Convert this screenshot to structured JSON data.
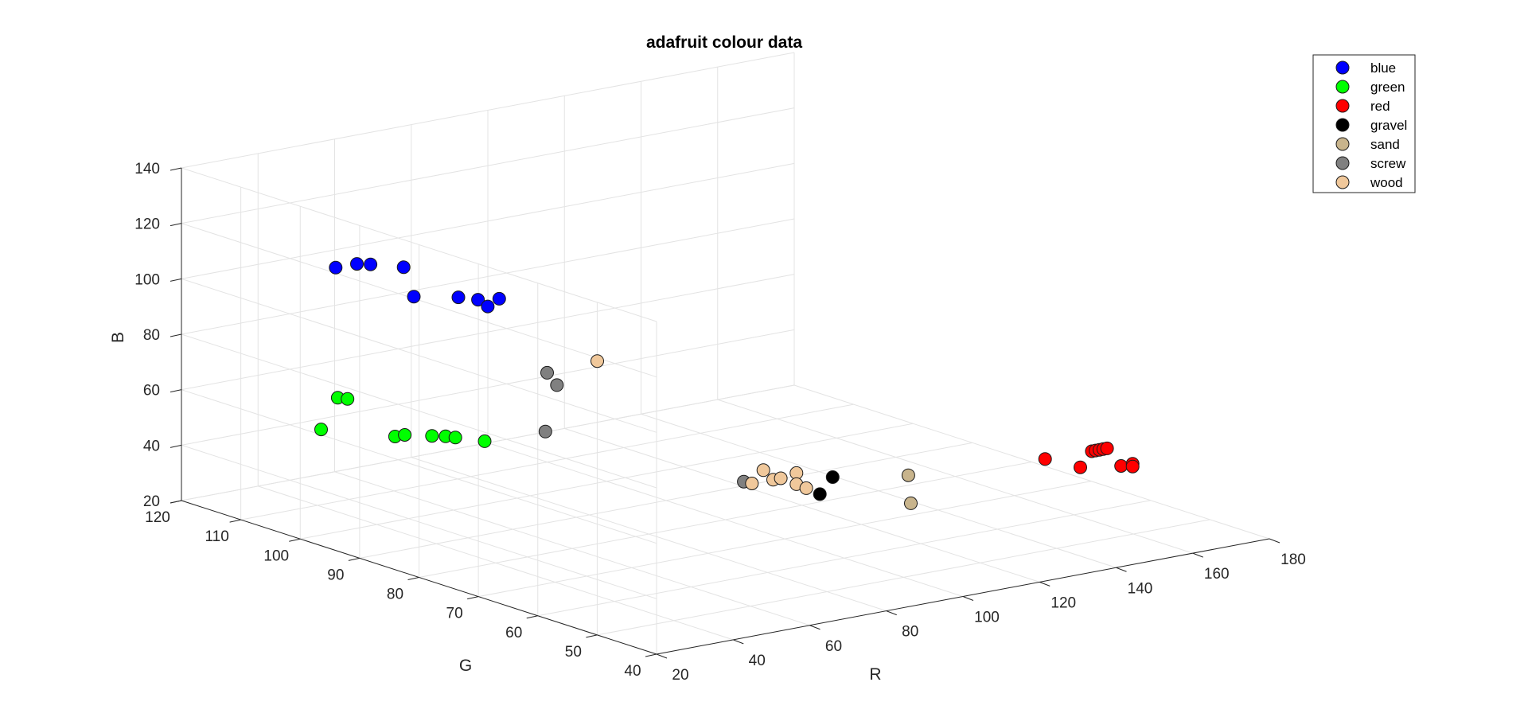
{
  "chart_data": {
    "type": "scatter",
    "subtype": "scatter3d",
    "title": "adafruit colour data",
    "xlabel": "R",
    "ylabel": "G",
    "zlabel": "B",
    "xlim": [
      20,
      180
    ],
    "ylim": [
      40,
      120
    ],
    "zlim": [
      20,
      140
    ],
    "xticks": [
      "20",
      "40",
      "60",
      "80",
      "100",
      "120",
      "140",
      "160",
      "180"
    ],
    "yticks": [
      "40",
      "50",
      "60",
      "70",
      "80",
      "90",
      "100",
      "110",
      "120"
    ],
    "zticks": [
      "20",
      "40",
      "60",
      "80",
      "100",
      "120",
      "140"
    ],
    "grid": true,
    "legend_position": "top-right",
    "series": [
      {
        "name": "blue",
        "color": "#0000ff",
        "points": [
          [
            37,
            105,
            110
          ],
          [
            41,
            104,
            111
          ],
          [
            43,
            103,
            111
          ],
          [
            47,
            100,
            111
          ],
          [
            45,
            97,
            103
          ],
          [
            52,
            94,
            103
          ],
          [
            54,
            92,
            103
          ],
          [
            55,
            91,
            101
          ],
          [
            58,
            91,
            103
          ]
        ]
      },
      {
        "name": "green",
        "color": "#00ff00",
        "points": [
          [
            27,
            101,
            57
          ],
          [
            36,
            104,
            64
          ],
          [
            37,
            103,
            64
          ],
          [
            37,
            95,
            56
          ],
          [
            38,
            94,
            57
          ],
          [
            42,
            92,
            57
          ],
          [
            44,
            91,
            57
          ],
          [
            45,
            90,
            57
          ],
          [
            48,
            87,
            57
          ]
        ]
      },
      {
        "name": "red",
        "color": "#ff0000",
        "points": [
          [
            154,
            61,
            41
          ],
          [
            157,
            57,
            40
          ],
          [
            160,
            57,
            45
          ],
          [
            161,
            57,
            45
          ],
          [
            162,
            57,
            45
          ],
          [
            163,
            57,
            45
          ],
          [
            164,
            57,
            45
          ],
          [
            163,
            54,
            41
          ],
          [
            166,
            54,
            41
          ],
          [
            166,
            54,
            40
          ]
        ]
      },
      {
        "name": "gravel",
        "color": "#000000",
        "points": [
          [
            89,
            57,
            48
          ],
          [
            97,
            60,
            50
          ]
        ]
      },
      {
        "name": "sand",
        "color": "#c8b48c",
        "points": [
          [
            109,
            55,
            51
          ],
          [
            105,
            52,
            44
          ]
        ]
      },
      {
        "name": "screw",
        "color": "#808080",
        "points": [
          [
            55,
            81,
            84
          ],
          [
            56,
            80,
            80
          ],
          [
            53,
            80,
            64
          ],
          [
            80,
            64,
            50
          ]
        ]
      },
      {
        "name": "wood",
        "color": "#f0c89b",
        "points": [
          [
            65,
            79,
            87
          ],
          [
            82,
            62,
            55
          ],
          [
            86,
            59,
            55
          ],
          [
            79,
            62,
            51
          ],
          [
            83,
            61,
            52
          ],
          [
            85,
            61,
            52
          ],
          [
            86,
            59,
            51
          ],
          [
            87,
            58,
            50
          ]
        ]
      }
    ]
  }
}
